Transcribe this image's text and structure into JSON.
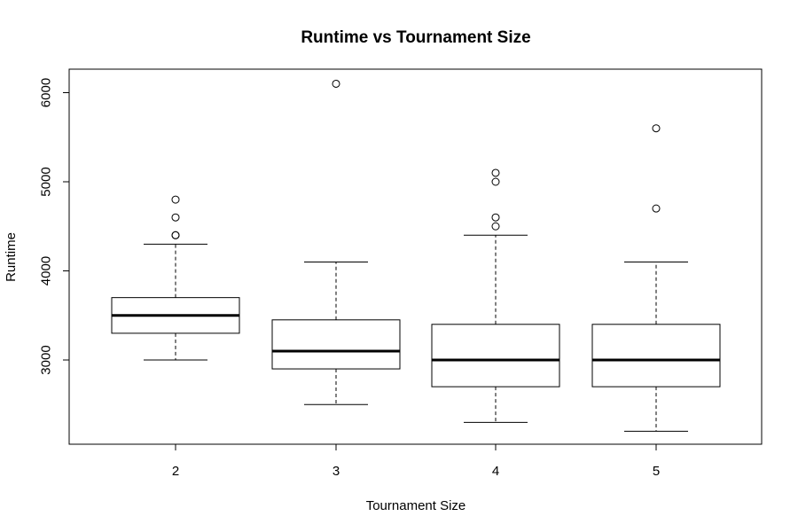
{
  "chart_data": {
    "type": "boxplot",
    "title": "Runtime vs Tournament Size",
    "xlabel": "Tournament Size",
    "ylabel": "Runtime",
    "categories": [
      "2",
      "3",
      "4",
      "5"
    ],
    "y_ticks": [
      3000,
      4000,
      5000,
      6000
    ],
    "ylim": [
      2050,
      6260
    ],
    "grid": false,
    "boxes": [
      {
        "category": "2",
        "whisker_low": 3000,
        "q1": 3300,
        "median": 3500,
        "q3": 3700,
        "whisker_high": 4300,
        "outliers": [
          4400,
          4400,
          4600,
          4800
        ]
      },
      {
        "category": "3",
        "whisker_low": 2500,
        "q1": 2900,
        "median": 3100,
        "q3": 3450,
        "whisker_high": 4100,
        "outliers": [
          6100
        ]
      },
      {
        "category": "4",
        "whisker_low": 2300,
        "q1": 2700,
        "median": 3000,
        "q3": 3400,
        "whisker_high": 4400,
        "outliers": [
          4500,
          4600,
          5000,
          5100
        ]
      },
      {
        "category": "5",
        "whisker_low": 2200,
        "q1": 2700,
        "median": 3000,
        "q3": 3400,
        "whisker_high": 4100,
        "outliers": [
          4700,
          5600
        ]
      }
    ]
  }
}
